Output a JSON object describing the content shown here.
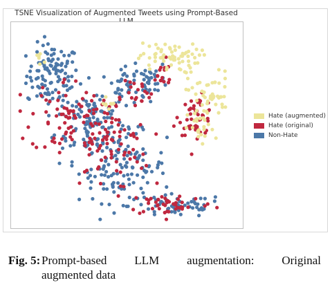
{
  "chart_data": {
    "type": "scatter",
    "title": "TSNE Visualization of Augmented Tweets using Prompt-Based LLM",
    "xlabel": "",
    "ylabel": "",
    "xlim": [
      0,
      100
    ],
    "ylim": [
      0,
      100
    ],
    "grid": false,
    "legend_position": "right",
    "series": [
      {
        "name": "Hate (augmented)",
        "color": "#ece59a",
        "clusters": [
          {
            "cx": 69,
            "cy": 85,
            "sx": 7,
            "sy": 4,
            "n": 65
          },
          {
            "cx": 88,
            "cy": 66,
            "sx": 5,
            "sy": 6,
            "n": 45
          },
          {
            "cx": 84,
            "cy": 48,
            "sx": 3,
            "sy": 5,
            "n": 25
          },
          {
            "cx": 42,
            "cy": 60,
            "sx": 2,
            "sy": 3,
            "n": 8
          },
          {
            "cx": 10,
            "cy": 85,
            "sx": 2,
            "sy": 2,
            "n": 6
          }
        ]
      },
      {
        "name": "Hate (original)",
        "color": "#c0283f",
        "clusters": [
          {
            "cx": 82,
            "cy": 55,
            "sx": 4,
            "sy": 5,
            "n": 50
          },
          {
            "cx": 40,
            "cy": 40,
            "sx": 10,
            "sy": 12,
            "n": 90
          },
          {
            "cx": 70,
            "cy": 9,
            "sx": 10,
            "sy": 3,
            "n": 45
          },
          {
            "cx": 22,
            "cy": 55,
            "sx": 8,
            "sy": 10,
            "n": 60
          },
          {
            "cx": 52,
            "cy": 68,
            "sx": 5,
            "sy": 4,
            "n": 20
          },
          {
            "cx": 66,
            "cy": 76,
            "sx": 3,
            "sy": 4,
            "n": 15
          }
        ]
      },
      {
        "name": "Non-Hate",
        "color": "#4c78a8",
        "clusters": [
          {
            "cx": 16,
            "cy": 76,
            "sx": 6,
            "sy": 8,
            "n": 110
          },
          {
            "cx": 33,
            "cy": 52,
            "sx": 8,
            "sy": 10,
            "n": 120
          },
          {
            "cx": 48,
            "cy": 28,
            "sx": 10,
            "sy": 9,
            "n": 120
          },
          {
            "cx": 73,
            "cy": 8,
            "sx": 11,
            "sy": 3,
            "n": 60
          },
          {
            "cx": 52,
            "cy": 70,
            "sx": 6,
            "sy": 5,
            "n": 45
          },
          {
            "cx": 63,
            "cy": 74,
            "sx": 3,
            "sy": 4,
            "n": 20
          }
        ]
      }
    ]
  },
  "caption": {
    "label": "Fig. 5:",
    "line1": "Prompt-based LLM augmentation: Original",
    "line2": "augmented data"
  }
}
